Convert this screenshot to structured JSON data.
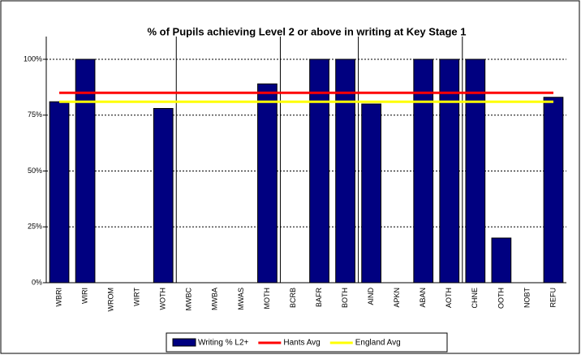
{
  "chart_data": {
    "type": "bar",
    "title": "% of Pupils achieving Level 2 or above in writing at Key Stage 1",
    "categories": [
      "WBRI",
      "WIRI",
      "WROM",
      "WIRT",
      "WOTH",
      "MWBC",
      "MWBA",
      "MWAS",
      "MOTH",
      "BCRB",
      "BAFR",
      "BOTH",
      "AIND",
      "APKN",
      "ABAN",
      "AOTH",
      "CHNE",
      "OOTH",
      "NOBT",
      "REFU"
    ],
    "series": [
      {
        "name": "Writing % L2+",
        "color": "#000080",
        "kind": "bar",
        "values": [
          81,
          100,
          null,
          null,
          78,
          null,
          null,
          null,
          89,
          null,
          100,
          100,
          80,
          null,
          100,
          100,
          100,
          20,
          null,
          83
        ]
      },
      {
        "name": "Hants Avg",
        "color": "#ff0000",
        "kind": "line",
        "values": [
          85,
          85,
          85,
          85,
          85,
          85,
          85,
          85,
          85,
          85,
          85,
          85,
          85,
          85,
          85,
          85,
          85,
          85,
          85,
          85
        ]
      },
      {
        "name": "England Avg",
        "color": "#ffff00",
        "kind": "line",
        "values": [
          81,
          81,
          81,
          81,
          81,
          81,
          81,
          81,
          81,
          81,
          81,
          81,
          81,
          81,
          81,
          81,
          81,
          81,
          81,
          81
        ]
      }
    ],
    "ylim": [
      0,
      100
    ],
    "yticks": [
      {
        "value": 0,
        "label": "0%"
      },
      {
        "value": 25,
        "label": "25%"
      },
      {
        "value": 50,
        "label": "50%"
      },
      {
        "value": 75,
        "label": "75%"
      },
      {
        "value": 100,
        "label": "100%"
      }
    ],
    "grid": true,
    "legend": "bottom"
  }
}
